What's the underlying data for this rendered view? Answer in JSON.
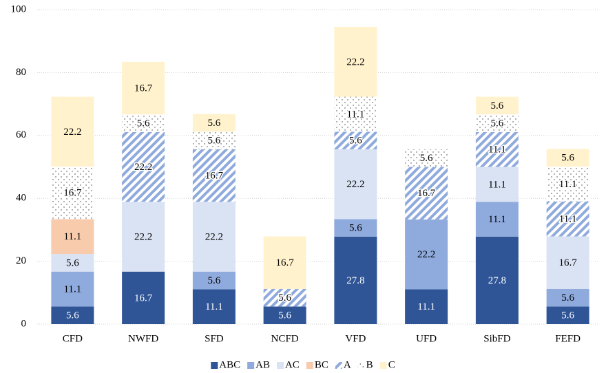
{
  "chart_data": {
    "type": "stacked_bar",
    "categories": [
      "CFD",
      "NWFD",
      "SFD",
      "NCFD",
      "VFD",
      "UFD",
      "SibFD",
      "FEFD"
    ],
    "series": [
      {
        "name": "ABC",
        "color": "#2f5597",
        "values": [
          5.6,
          16.7,
          11.1,
          5.6,
          27.8,
          11.1,
          27.8,
          5.6
        ]
      },
      {
        "name": "AB",
        "color": "#8faadc",
        "values": [
          11.1,
          null,
          5.6,
          null,
          5.6,
          22.2,
          11.1,
          5.6
        ]
      },
      {
        "name": "AC",
        "color": "#dae3f3",
        "values": [
          5.6,
          22.2,
          22.2,
          null,
          22.2,
          null,
          11.1,
          16.7
        ]
      },
      {
        "name": "BC",
        "color": "#f8cbad",
        "values": [
          11.1,
          null,
          null,
          null,
          null,
          null,
          null,
          null
        ]
      },
      {
        "name": "A",
        "color": "#8faadc",
        "pattern": "hatch",
        "values": [
          null,
          22.2,
          16.7,
          5.6,
          5.6,
          16.7,
          11.1,
          11.1
        ]
      },
      {
        "name": "B",
        "color": "#404040",
        "pattern": "dots",
        "values": [
          16.7,
          5.6,
          5.6,
          null,
          11.1,
          5.6,
          5.6,
          11.1
        ]
      },
      {
        "name": "C",
        "color": "#fff2cc",
        "values": [
          22.2,
          16.7,
          5.6,
          16.7,
          22.2,
          null,
          5.6,
          5.6
        ]
      }
    ],
    "ylim": [
      0,
      100
    ],
    "yticks": [
      0,
      20,
      40,
      60,
      80,
      100
    ],
    "grid": true,
    "legend": "bottom"
  }
}
